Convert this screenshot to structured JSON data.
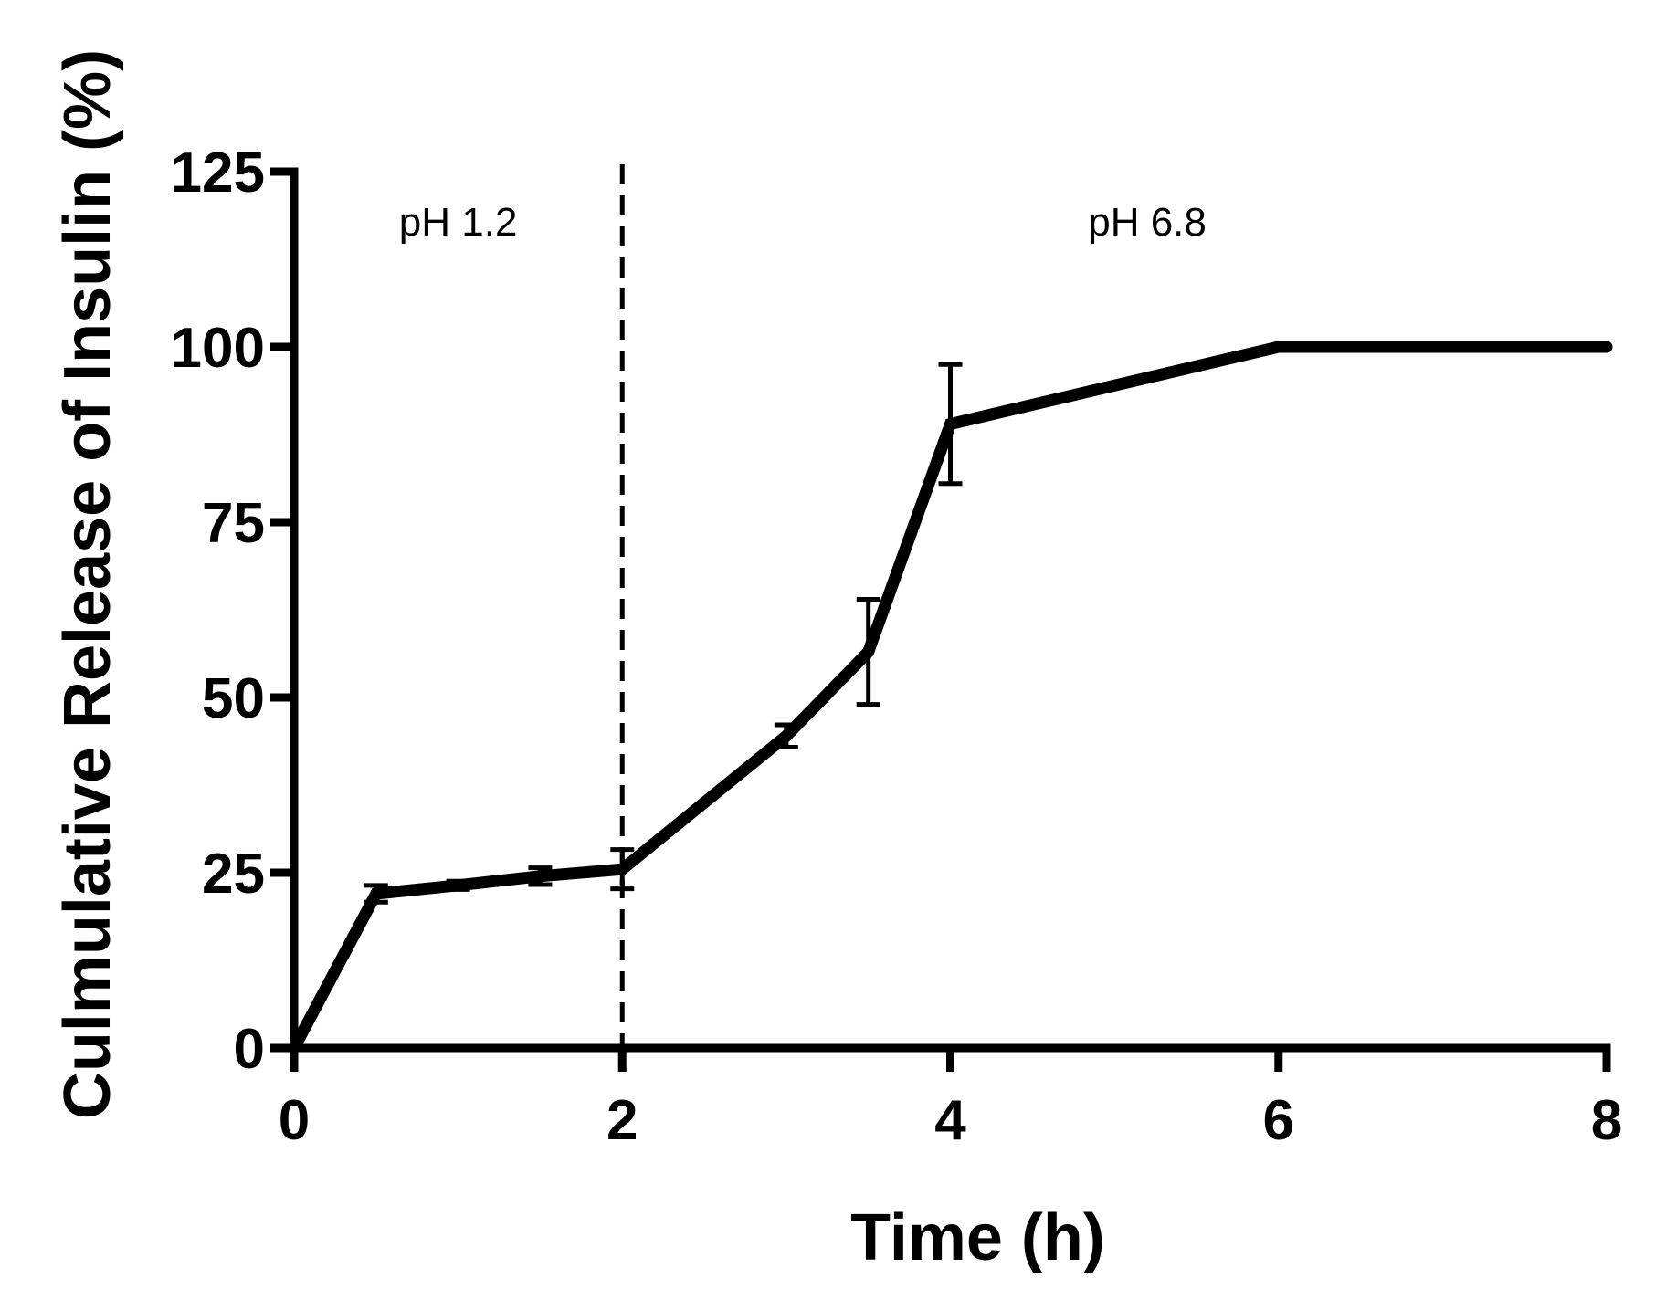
{
  "chart_data": {
    "type": "line",
    "title": "",
    "xlabel": "Time (h)",
    "ylabel": "Culmulative Release of Insulin (%)",
    "xlim": [
      0,
      8
    ],
    "ylim": [
      0,
      125
    ],
    "x_ticks": [
      "0",
      "2",
      "4",
      "6",
      "8"
    ],
    "y_ticks": [
      "0",
      "25",
      "50",
      "75",
      "100",
      "125"
    ],
    "grid": false,
    "legend": "none",
    "line_color": "#000000",
    "series": [
      {
        "x": [
          0,
          0.5,
          1,
          1.5,
          2,
          3,
          3.5,
          4,
          6,
          8
        ],
        "y": [
          0,
          22,
          23.2,
          24.5,
          25.5,
          44.5,
          56.5,
          89,
          100,
          100
        ],
        "error": [
          0,
          1.2,
          0.6,
          1.2,
          2.8,
          1.6,
          7.5,
          8.5,
          0,
          0
        ]
      }
    ],
    "annotations": [
      {
        "text": "pH 1.2",
        "x": 1.0,
        "y": 118
      },
      {
        "text": "pH 6.8",
        "x": 5.2,
        "y": 118
      }
    ],
    "reference_lines": [
      {
        "axis": "x",
        "value": 2,
        "style": "dashed"
      }
    ]
  }
}
